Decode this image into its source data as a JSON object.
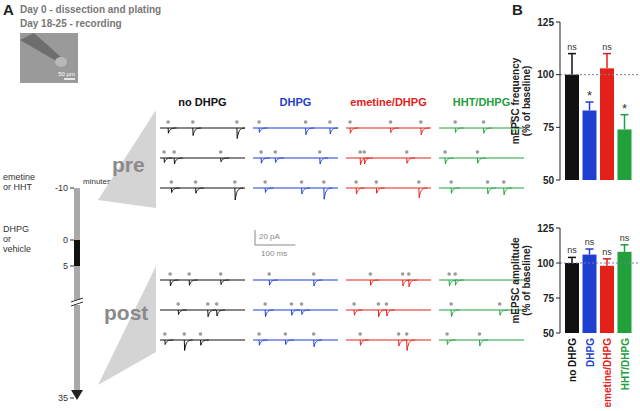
{
  "panel_a": {
    "label": "A",
    "header": [
      "Day 0 - dissection and plating",
      "Day 18-25 - recording"
    ],
    "photo_scale": "50 µm",
    "timeline": {
      "unit": "minutes",
      "ticks": [
        -10,
        0,
        5,
        35
      ],
      "pretreat_window": [
        -10,
        35
      ],
      "drug_window": [
        0,
        5
      ],
      "pretreat_label": [
        "emetine",
        "or HHT"
      ],
      "drug_label": [
        "DHPG",
        "or",
        "vehicle"
      ]
    },
    "phases": [
      "pre",
      "post"
    ],
    "scale_bar": {
      "x": 100,
      "x_label": "100 ms",
      "y": 20,
      "y_label": "20 pA"
    },
    "xlim": [
      0,
      210
    ],
    "columns": [
      {
        "name": "no DHPG",
        "color": "#111111",
        "pre": [
          {
            "t": [
              20,
              81,
              190
            ],
            "amp": [
              7,
              10,
              14
            ]
          },
          {
            "t": [
              10,
              35,
              150
            ],
            "amp": [
              6,
              8,
              5
            ]
          },
          {
            "t": [
              28,
              88,
              185
            ],
            "amp": [
              6,
              7,
              16
            ]
          }
        ],
        "post": [
          {
            "t": [
              25,
              72,
              150
            ],
            "amp": [
              8,
              7,
              6
            ]
          },
          {
            "t": [
              45,
              118,
              140
            ],
            "amp": [
              6,
              9,
              8
            ]
          },
          {
            "t": [
              12,
              60,
              100
            ],
            "amp": [
              6,
              14,
              7
            ]
          }
        ]
      },
      {
        "name": "DHPG",
        "color": "#1f3fd1",
        "pre": [
          {
            "t": [
              15,
              130,
              190
            ],
            "amp": [
              6,
              9,
              8
            ]
          },
          {
            "t": [
              20,
              55,
              165
            ],
            "amp": [
              7,
              6,
              8
            ]
          },
          {
            "t": [
              30,
              120,
              175
            ],
            "amp": [
              6,
              8,
              15
            ]
          }
        ],
        "post": [
          {
            "t": [
              40,
              150
            ],
            "amp": [
              7,
              8
            ]
          },
          {
            "t": [
              30,
              95,
              120
            ],
            "amp": [
              9,
              7,
              6
            ]
          },
          {
            "t": [
              15,
              80,
              150
            ],
            "amp": [
              7,
              6,
              9
            ]
          }
        ]
      },
      {
        "name": "emetine/DHPG",
        "color": "#e32119",
        "pre": [
          {
            "t": [
              10,
              110,
              185
            ],
            "amp": [
              7,
              6,
              9
            ]
          },
          {
            "t": [
              35,
              45,
              150
            ],
            "amp": [
              9,
              8,
              7
            ]
          },
          {
            "t": [
              25,
              75,
              180
            ],
            "amp": [
              8,
              7,
              13
            ]
          }
        ],
        "post": [
          {
            "t": [
              60,
              140,
              155
            ],
            "amp": [
              7,
              8,
              9
            ]
          },
          {
            "t": [
              20,
              80,
              100
            ],
            "amp": [
              7,
              9,
              8
            ]
          },
          {
            "t": [
              35,
              130,
              150
            ],
            "amp": [
              7,
              8,
              14
            ]
          }
        ]
      },
      {
        "name": "HHT/DHPG",
        "color": "#21a03c",
        "pre": [
          {
            "t": [
              40,
              110,
              180
            ],
            "amp": [
              6,
              7,
              8
            ]
          },
          {
            "t": [
              15,
              95
            ],
            "amp": [
              8,
              7
            ]
          },
          {
            "t": [
              30,
              120,
              160
            ],
            "amp": [
              7,
              8,
              9
            ]
          }
        ],
        "post": [
          {
            "t": [
              25,
              40
            ],
            "amp": [
              8,
              7
            ]
          },
          {
            "t": [
              30,
              150
            ],
            "amp": [
              9,
              7
            ]
          },
          {
            "t": [
              20,
              100
            ],
            "amp": [
              6,
              8
            ]
          }
        ]
      }
    ]
  },
  "panel_b": {
    "label": "B"
  },
  "chart_data": [
    {
      "type": "bar",
      "categories": [
        null,
        null,
        null,
        null
      ],
      "values": [
        100,
        83,
        103,
        74
      ],
      "errors": [
        10,
        4,
        7,
        7
      ],
      "colors": [
        "#111111",
        "#1f3fd1",
        "#e32119",
        "#21a03c"
      ],
      "significance": [
        "ns",
        "*",
        "ns",
        "*"
      ],
      "ylabel": [
        "mEPSC frequency",
        "(% of baseline)"
      ],
      "ylim": [
        50,
        125
      ],
      "yticks": [
        50,
        75,
        100,
        125
      ],
      "reference_line": 100,
      "tick_labels": "y"
    },
    {
      "type": "bar",
      "categories": [
        "no DHPG",
        "DHPG",
        "emetine/DHPG",
        "HHT/DHPG"
      ],
      "values": [
        100,
        106,
        98,
        108
      ],
      "errors": [
        4,
        4,
        5,
        5
      ],
      "colors": [
        "#111111",
        "#1f3fd1",
        "#e32119",
        "#21a03c"
      ],
      "significance": [
        "ns",
        "ns",
        "ns",
        "ns"
      ],
      "ylabel": [
        "mEPSC amplitude",
        "(% of baseline)"
      ],
      "ylim": [
        50,
        125
      ],
      "yticks": [
        50,
        75,
        100,
        125
      ],
      "reference_line": 100,
      "tick_labels": true
    }
  ]
}
